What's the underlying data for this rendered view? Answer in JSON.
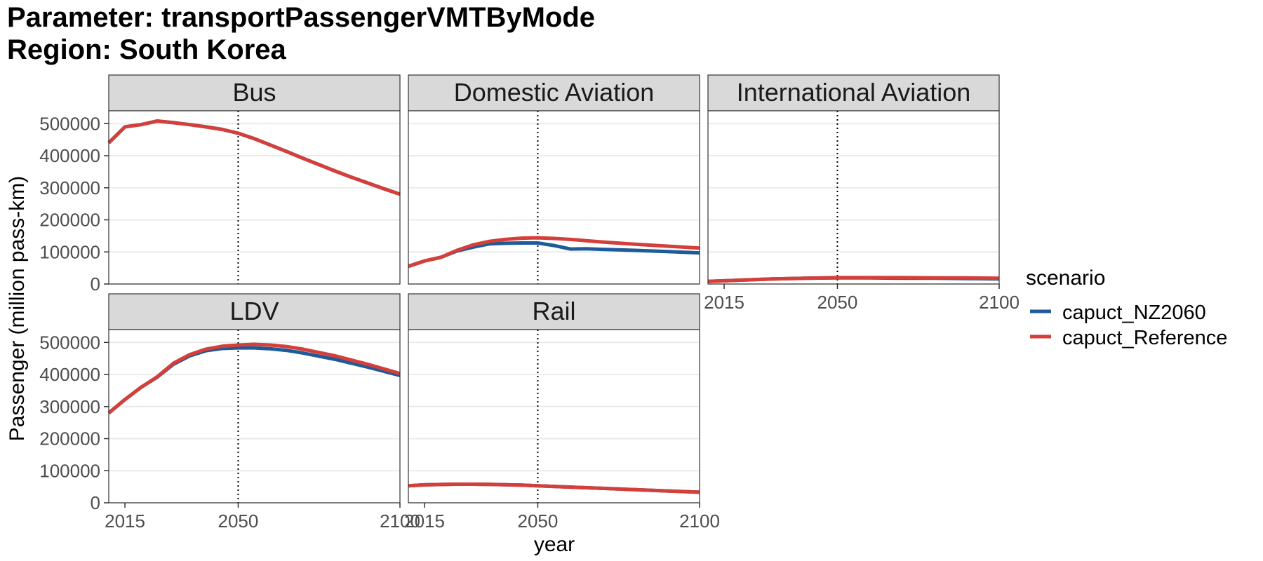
{
  "title_lines": [
    "Parameter: transportPassengerVMTByMode",
    "Region: South Korea"
  ],
  "chart_data": {
    "type": "line",
    "xlabel": "year",
    "ylabel": "Passenger (million pass-km)",
    "xlim": [
      2010,
      2100
    ],
    "ylim": [
      0,
      540000
    ],
    "x_ticks": [
      2015,
      2050,
      2100
    ],
    "y_ticks": [
      0,
      100000,
      200000,
      300000,
      400000,
      500000
    ],
    "vline_x": 2050,
    "grid": true,
    "legend": {
      "title": "scenario",
      "position": "right",
      "entries": [
        {
          "name": "capuct_NZ2060",
          "color": "#1f5a99"
        },
        {
          "name": "capuct_Reference",
          "color": "#d43f3a"
        }
      ]
    },
    "panels": [
      {
        "name": "Bus",
        "series": [
          {
            "name": "capuct_NZ2060",
            "x": [
              2010,
              2015,
              2020,
              2025,
              2030,
              2035,
              2040,
              2045,
              2050,
              2055,
              2060,
              2065,
              2070,
              2075,
              2080,
              2085,
              2090,
              2095,
              2100
            ],
            "values": [
              440000,
              490000,
              497000,
              508000,
              503000,
              497000,
              490000,
              482000,
              470000,
              453000,
              433000,
              413000,
              392000,
              372000,
              352000,
              333000,
              315000,
              297000,
              280000
            ]
          },
          {
            "name": "capuct_Reference",
            "x": [
              2010,
              2015,
              2020,
              2025,
              2030,
              2035,
              2040,
              2045,
              2050,
              2055,
              2060,
              2065,
              2070,
              2075,
              2080,
              2085,
              2090,
              2095,
              2100
            ],
            "values": [
              440000,
              490000,
              497000,
              508000,
              503000,
              497000,
              490000,
              482000,
              470000,
              453000,
              433000,
              413000,
              392000,
              372000,
              352000,
              333000,
              315000,
              297000,
              280000
            ]
          }
        ]
      },
      {
        "name": "Domestic Aviation",
        "series": [
          {
            "name": "capuct_NZ2060",
            "x": [
              2010,
              2015,
              2020,
              2025,
              2030,
              2035,
              2040,
              2045,
              2050,
              2055,
              2060,
              2065,
              2070,
              2080,
              2090,
              2100
            ],
            "values": [
              55000,
              72000,
              83000,
              103000,
              115000,
              125000,
              127000,
              128000,
              128000,
              120000,
              109000,
              110000,
              108000,
              105000,
              101000,
              97000
            ]
          },
          {
            "name": "capuct_Reference",
            "x": [
              2010,
              2015,
              2020,
              2025,
              2030,
              2035,
              2040,
              2045,
              2050,
              2055,
              2060,
              2065,
              2070,
              2080,
              2090,
              2100
            ],
            "values": [
              55000,
              72000,
              83000,
              105000,
              122000,
              133000,
              139000,
              143000,
              144000,
              142000,
              139000,
              135000,
              131000,
              124000,
              118000,
              112000
            ]
          }
        ]
      },
      {
        "name": "International Aviation",
        "series": [
          {
            "name": "capuct_NZ2060",
            "x": [
              2010,
              2020,
              2030,
              2040,
              2050,
              2060,
              2070,
              2080,
              2090,
              2100
            ],
            "values": [
              8000,
              12000,
              16000,
              18000,
              19000,
              19000,
              18000,
              18000,
              17000,
              16000
            ]
          },
          {
            "name": "capuct_Reference",
            "x": [
              2010,
              2020,
              2030,
              2040,
              2050,
              2060,
              2070,
              2080,
              2090,
              2100
            ],
            "values": [
              8000,
              12000,
              16000,
              18000,
              20000,
              20000,
              20000,
              19000,
              19000,
              18000
            ]
          }
        ]
      },
      {
        "name": "LDV",
        "series": [
          {
            "name": "capuct_NZ2060",
            "x": [
              2010,
              2015,
              2020,
              2025,
              2030,
              2035,
              2040,
              2045,
              2050,
              2055,
              2060,
              2065,
              2070,
              2080,
              2090,
              2100
            ],
            "values": [
              280000,
              322000,
              360000,
              392000,
              432000,
              458000,
              474000,
              481000,
              483000,
              483000,
              480000,
              475000,
              467000,
              447000,
              423000,
              397000
            ]
          },
          {
            "name": "capuct_Reference",
            "x": [
              2010,
              2015,
              2020,
              2025,
              2030,
              2035,
              2040,
              2045,
              2050,
              2055,
              2060,
              2065,
              2070,
              2080,
              2090,
              2100
            ],
            "values": [
              280000,
              322000,
              360000,
              393000,
              435000,
              462000,
              479000,
              488000,
              492000,
              494000,
              492000,
              487000,
              479000,
              458000,
              432000,
              403000
            ]
          }
        ]
      },
      {
        "name": "Rail",
        "series": [
          {
            "name": "capuct_NZ2060",
            "x": [
              2010,
              2015,
              2020,
              2025,
              2030,
              2035,
              2040,
              2045,
              2050,
              2060,
              2070,
              2080,
              2090,
              2100
            ],
            "values": [
              53000,
              56000,
              57000,
              58000,
              58000,
              57500,
              56500,
              55000,
              53000,
              49000,
              45000,
              41000,
              37000,
              33000
            ]
          },
          {
            "name": "capuct_Reference",
            "x": [
              2010,
              2015,
              2020,
              2025,
              2030,
              2035,
              2040,
              2045,
              2050,
              2060,
              2070,
              2080,
              2090,
              2100
            ],
            "values": [
              53000,
              56000,
              57000,
              58000,
              58000,
              57500,
              56500,
              55000,
              53000,
              49000,
              45000,
              41000,
              37000,
              33000
            ]
          }
        ]
      }
    ]
  }
}
